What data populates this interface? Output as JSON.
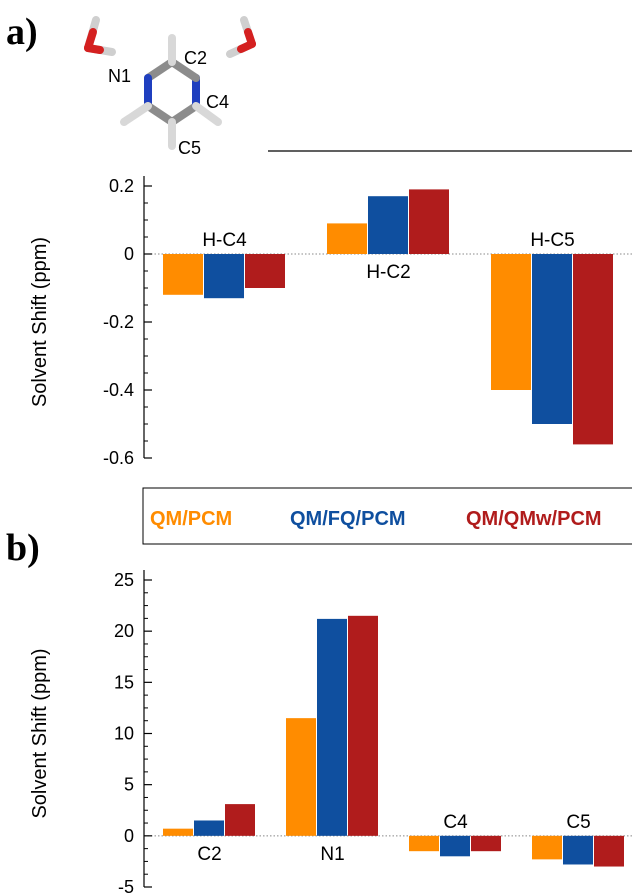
{
  "panels": {
    "a": "a)",
    "b": "b)"
  },
  "molecule": {
    "atom_labels": [
      "N1",
      "C2",
      "C4",
      "C5"
    ],
    "colors": {
      "carbon": "#8c8c8c",
      "nitrogen": "#1f3fbf",
      "oxygen": "#d42020",
      "hydrogen": "#e6e6e6"
    }
  },
  "legend": {
    "items": [
      {
        "label": "QM/PCM",
        "color": "#ff8c00"
      },
      {
        "label": "QM/FQ/PCM",
        "color": "#0f4f9f"
      },
      {
        "label": "QM/QMw/PCM",
        "color": "#b01c1c"
      }
    ]
  },
  "chart_data": [
    {
      "type": "bar",
      "panel": "a",
      "ylabel": "Solvent Shift (ppm)",
      "ylim": [
        -0.6,
        0.2
      ],
      "yticks": [
        0.2,
        0,
        -0.2,
        -0.4,
        -0.6
      ],
      "ytick_labels": [
        "0.2",
        "0",
        "-0.2",
        "-0.4",
        "-0.6"
      ],
      "categories": [
        "H-C4",
        "H-C2",
        "H-C5"
      ],
      "category_label_side": [
        "above",
        "below",
        "above"
      ],
      "series": [
        {
          "name": "QM/PCM",
          "color": "#ff8c00",
          "values": [
            -0.12,
            0.09,
            -0.4
          ]
        },
        {
          "name": "QM/FQ/PCM",
          "color": "#0f4f9f",
          "values": [
            -0.13,
            0.17,
            -0.5
          ]
        },
        {
          "name": "QM/QMw/PCM",
          "color": "#b01c1c",
          "values": [
            -0.1,
            0.19,
            -0.56
          ]
        }
      ]
    },
    {
      "type": "bar",
      "panel": "b",
      "ylabel": "Solvent Shift (ppm)",
      "ylim": [
        -5,
        25
      ],
      "yticks": [
        25,
        20,
        15,
        10,
        5,
        0,
        -5
      ],
      "ytick_labels": [
        "25",
        "20",
        "15",
        "10",
        "5",
        "0",
        "-5"
      ],
      "categories": [
        "C2",
        "N1",
        "C4",
        "C5"
      ],
      "category_label_side": [
        "below",
        "below",
        "above",
        "above"
      ],
      "series": [
        {
          "name": "QM/PCM",
          "color": "#ff8c00",
          "values": [
            0.7,
            11.5,
            -1.5,
            -2.3
          ]
        },
        {
          "name": "QM/FQ/PCM",
          "color": "#0f4f9f",
          "values": [
            1.5,
            21.2,
            -2.0,
            -2.8
          ]
        },
        {
          "name": "QM/QMw/PCM",
          "color": "#b01c1c",
          "values": [
            3.1,
            21.5,
            -1.5,
            -3.0
          ]
        }
      ]
    }
  ]
}
